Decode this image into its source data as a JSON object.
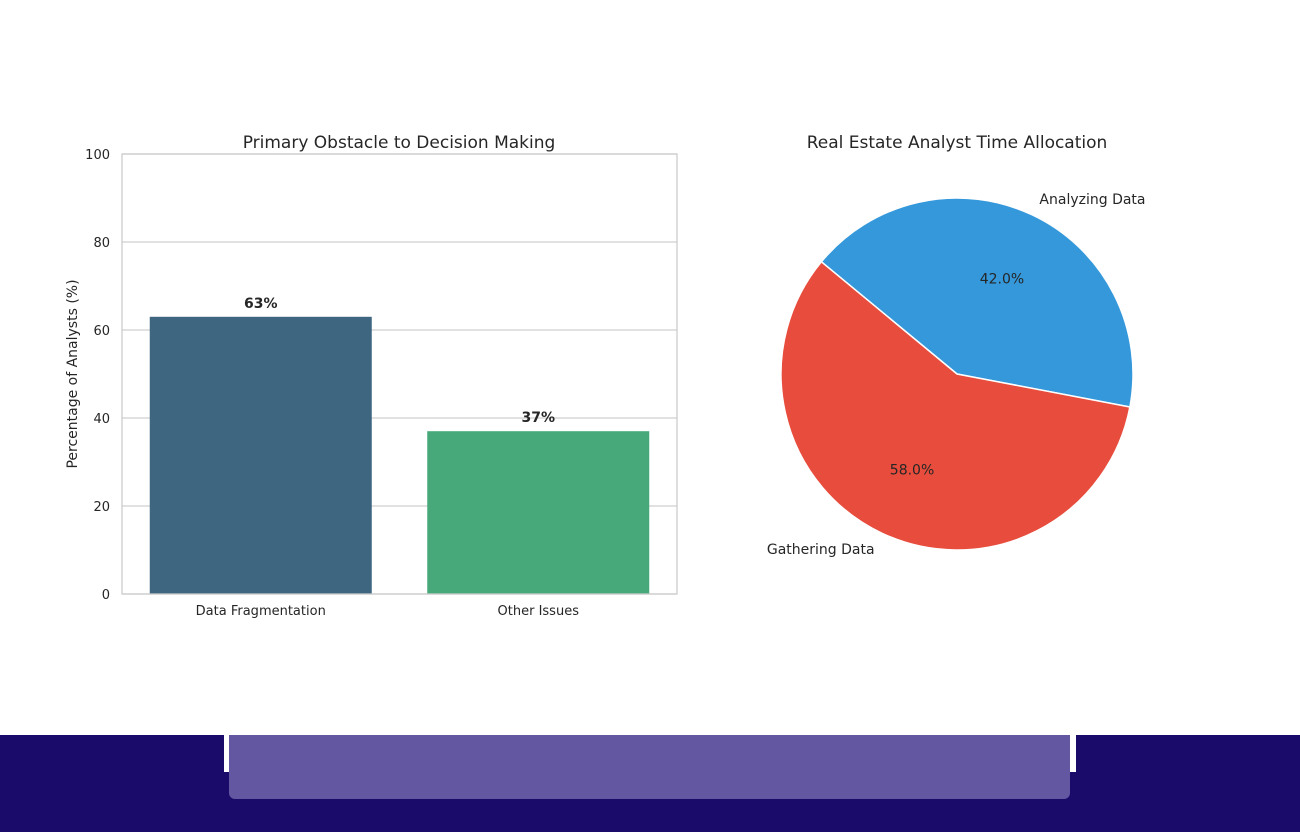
{
  "chart_data": [
    {
      "type": "bar",
      "title": "Primary Obstacle to Decision Making",
      "categories": [
        "Data Fragmentation",
        "Other Issues"
      ],
      "values": [
        63,
        37
      ],
      "data_labels": [
        "63%",
        "37%"
      ],
      "colors": [
        "#3e6680",
        "#47a97a"
      ],
      "xlabel": "",
      "ylabel": "Percentage of Analysts (%)",
      "ylim": [
        0,
        100
      ],
      "yticks": [
        0,
        20,
        40,
        60,
        80,
        100
      ],
      "grid": true
    },
    {
      "type": "pie",
      "title": "Real Estate Analyst Time Allocation",
      "labels": [
        "Analyzing Data",
        "Gathering Data"
      ],
      "values": [
        42.0,
        58.0
      ],
      "pct_labels": [
        "42.0%",
        "58.0%"
      ],
      "colors": [
        "#3498db",
        "#e74c3c"
      ]
    }
  ],
  "footer": {
    "background": "#1a0b6a",
    "bar_color": "#6257a0"
  }
}
